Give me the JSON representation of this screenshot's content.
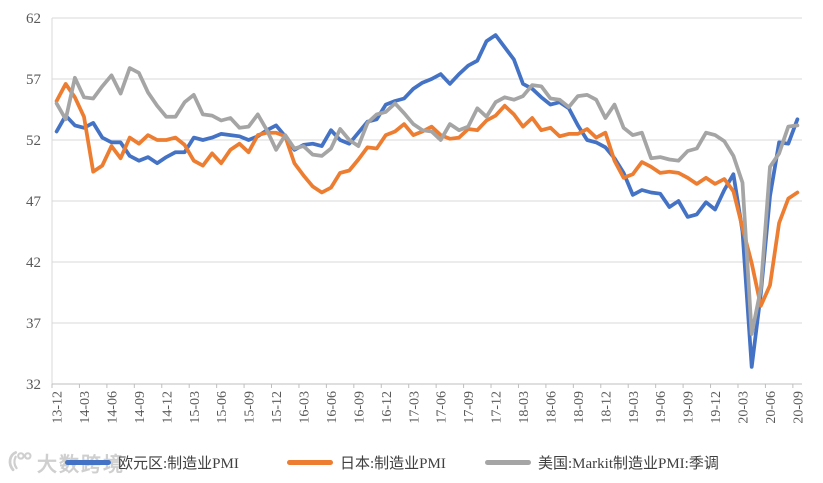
{
  "watermark": {
    "text": "大数跨境",
    "icon": "dashu-logo-icon"
  },
  "chart_data": {
    "type": "line",
    "title": "",
    "xlabel": "",
    "ylabel": "",
    "ylim": [
      32,
      62
    ],
    "y_ticks": [
      32,
      37,
      42,
      47,
      52,
      57,
      62
    ],
    "grid": "horizontal",
    "legend_position": "bottom",
    "x_label_interval": 3,
    "x": [
      "13-12",
      "14-01",
      "14-02",
      "14-03",
      "14-04",
      "14-05",
      "14-06",
      "14-07",
      "14-08",
      "14-09",
      "14-10",
      "14-11",
      "14-12",
      "15-01",
      "15-02",
      "15-03",
      "15-04",
      "15-05",
      "15-06",
      "15-07",
      "15-08",
      "15-09",
      "15-10",
      "15-11",
      "15-12",
      "16-01",
      "16-02",
      "16-03",
      "16-04",
      "16-05",
      "16-06",
      "16-07",
      "16-08",
      "16-09",
      "16-10",
      "16-11",
      "16-12",
      "17-01",
      "17-02",
      "17-03",
      "17-04",
      "17-05",
      "17-06",
      "17-07",
      "17-08",
      "17-09",
      "17-10",
      "17-11",
      "17-12",
      "18-01",
      "18-02",
      "18-03",
      "18-04",
      "18-05",
      "18-06",
      "18-07",
      "18-08",
      "18-09",
      "18-10",
      "18-11",
      "18-12",
      "19-01",
      "19-02",
      "19-03",
      "19-04",
      "19-05",
      "19-06",
      "19-07",
      "19-08",
      "19-09",
      "19-10",
      "19-11",
      "19-12",
      "20-01",
      "20-02",
      "20-03",
      "20-04",
      "20-05",
      "20-06",
      "20-07",
      "20-08",
      "20-09"
    ],
    "series": [
      {
        "name": "欧元区:制造业PMI",
        "color": "#4472C4",
        "values": [
          52.7,
          54.0,
          53.2,
          53.0,
          53.4,
          52.2,
          51.8,
          51.8,
          50.7,
          50.3,
          50.6,
          50.1,
          50.6,
          51.0,
          51.0,
          52.2,
          52.0,
          52.2,
          52.5,
          52.4,
          52.3,
          52.0,
          52.3,
          52.8,
          53.2,
          52.3,
          51.2,
          51.6,
          51.7,
          51.5,
          52.8,
          52.0,
          51.7,
          52.6,
          53.5,
          53.7,
          54.9,
          55.2,
          55.4,
          56.2,
          56.7,
          57.0,
          57.4,
          56.6,
          57.4,
          58.1,
          58.5,
          60.1,
          60.6,
          59.6,
          58.6,
          56.6,
          56.2,
          55.5,
          54.9,
          55.1,
          54.6,
          53.2,
          52.0,
          51.8,
          51.4,
          50.5,
          49.3,
          47.5,
          47.9,
          47.7,
          47.6,
          46.5,
          47.0,
          45.7,
          45.9,
          46.9,
          46.3,
          47.9,
          49.2,
          44.5,
          33.4,
          39.4,
          47.4,
          51.8,
          51.7,
          53.7
        ]
      },
      {
        "name": "日本:制造业PMI",
        "color": "#ED7D31",
        "values": [
          55.2,
          56.6,
          55.5,
          53.9,
          49.4,
          49.9,
          51.5,
          50.5,
          52.2,
          51.7,
          52.4,
          52.0,
          52.0,
          52.2,
          51.6,
          50.3,
          49.9,
          50.9,
          50.1,
          51.2,
          51.7,
          51.0,
          52.4,
          52.6,
          52.6,
          52.3,
          50.1,
          49.1,
          48.2,
          47.7,
          48.1,
          49.3,
          49.5,
          50.4,
          51.4,
          51.3,
          52.4,
          52.7,
          53.3,
          52.4,
          52.7,
          53.1,
          52.4,
          52.1,
          52.2,
          52.9,
          52.8,
          53.6,
          54.0,
          54.8,
          54.1,
          53.1,
          53.8,
          52.8,
          53.0,
          52.3,
          52.5,
          52.5,
          52.9,
          52.2,
          52.6,
          50.3,
          48.9,
          49.2,
          50.2,
          49.8,
          49.3,
          49.4,
          49.3,
          48.9,
          48.4,
          48.9,
          48.4,
          48.8,
          47.8,
          44.8,
          41.9,
          38.4,
          40.1,
          45.2,
          47.2,
          47.7
        ]
      },
      {
        "name": "美国:Markit制造业PMI:季调",
        "color": "#A5A5A5",
        "values": [
          55.0,
          53.7,
          57.1,
          55.5,
          55.4,
          56.4,
          57.3,
          55.8,
          57.9,
          57.5,
          55.9,
          54.8,
          53.9,
          53.9,
          55.1,
          55.7,
          54.1,
          54.0,
          53.6,
          53.8,
          53.0,
          53.1,
          54.1,
          52.8,
          51.2,
          52.4,
          51.3,
          51.5,
          50.8,
          50.7,
          51.3,
          52.9,
          52.0,
          51.5,
          53.4,
          54.1,
          54.3,
          55.0,
          54.2,
          53.3,
          52.8,
          52.7,
          52.0,
          53.3,
          52.8,
          53.1,
          54.6,
          53.9,
          55.1,
          55.5,
          55.3,
          55.6,
          56.5,
          56.4,
          55.4,
          55.3,
          54.7,
          55.6,
          55.7,
          55.3,
          53.8,
          54.9,
          53.0,
          52.4,
          52.6,
          50.5,
          50.6,
          50.4,
          50.3,
          51.1,
          51.3,
          52.6,
          52.4,
          51.9,
          50.7,
          48.5,
          36.1,
          39.8,
          49.8,
          50.9,
          53.1,
          53.2
        ]
      }
    ]
  }
}
